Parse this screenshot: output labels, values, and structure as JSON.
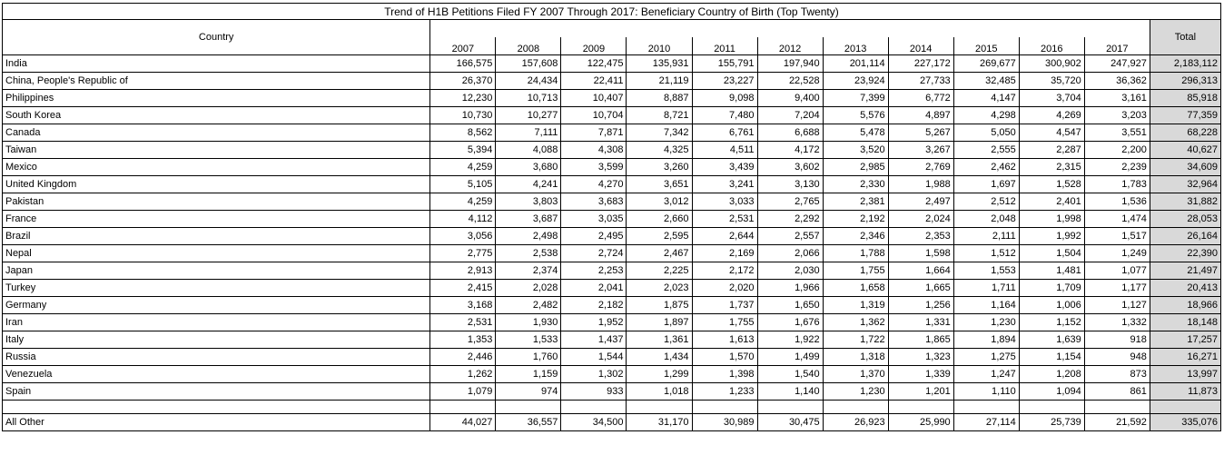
{
  "title": "Trend of H1B Petitions Filed FY 2007 Through 2017: Beneficiary Country of Birth (Top Twenty)",
  "table": {
    "header": {
      "country": "Country",
      "years": [
        "2007",
        "2008",
        "2009",
        "2010",
        "2011",
        "2012",
        "2013",
        "2014",
        "2015",
        "2016",
        "2017"
      ],
      "total": "Total"
    },
    "rows": [
      [
        "India",
        "166,575",
        "157,608",
        "122,475",
        "135,931",
        "155,791",
        "197,940",
        "201,114",
        "227,172",
        "269,677",
        "300,902",
        "247,927",
        "2,183,112"
      ],
      [
        "China, People's Republic of",
        "26,370",
        "24,434",
        "22,411",
        "21,119",
        "23,227",
        "22,528",
        "23,924",
        "27,733",
        "32,485",
        "35,720",
        "36,362",
        "296,313"
      ],
      [
        "Philippines",
        "12,230",
        "10,713",
        "10,407",
        "8,887",
        "9,098",
        "9,400",
        "7,399",
        "6,772",
        "4,147",
        "3,704",
        "3,161",
        "85,918"
      ],
      [
        "South Korea",
        "10,730",
        "10,277",
        "10,704",
        "8,721",
        "7,480",
        "7,204",
        "5,576",
        "4,897",
        "4,298",
        "4,269",
        "3,203",
        "77,359"
      ],
      [
        "Canada",
        "8,562",
        "7,111",
        "7,871",
        "7,342",
        "6,761",
        "6,688",
        "5,478",
        "5,267",
        "5,050",
        "4,547",
        "3,551",
        "68,228"
      ],
      [
        "Taiwan",
        "5,394",
        "4,088",
        "4,308",
        "4,325",
        "4,511",
        "4,172",
        "3,520",
        "3,267",
        "2,555",
        "2,287",
        "2,200",
        "40,627"
      ],
      [
        "Mexico",
        "4,259",
        "3,680",
        "3,599",
        "3,260",
        "3,439",
        "3,602",
        "2,985",
        "2,769",
        "2,462",
        "2,315",
        "2,239",
        "34,609"
      ],
      [
        "United Kingdom",
        "5,105",
        "4,241",
        "4,270",
        "3,651",
        "3,241",
        "3,130",
        "2,330",
        "1,988",
        "1,697",
        "1,528",
        "1,783",
        "32,964"
      ],
      [
        "Pakistan",
        "4,259",
        "3,803",
        "3,683",
        "3,012",
        "3,033",
        "2,765",
        "2,381",
        "2,497",
        "2,512",
        "2,401",
        "1,536",
        "31,882"
      ],
      [
        "France",
        "4,112",
        "3,687",
        "3,035",
        "2,660",
        "2,531",
        "2,292",
        "2,192",
        "2,024",
        "2,048",
        "1,998",
        "1,474",
        "28,053"
      ],
      [
        "Brazil",
        "3,056",
        "2,498",
        "2,495",
        "2,595",
        "2,644",
        "2,557",
        "2,346",
        "2,353",
        "2,111",
        "1,992",
        "1,517",
        "26,164"
      ],
      [
        "Nepal",
        "2,775",
        "2,538",
        "2,724",
        "2,467",
        "2,169",
        "2,066",
        "1,788",
        "1,598",
        "1,512",
        "1,504",
        "1,249",
        "22,390"
      ],
      [
        "Japan",
        "2,913",
        "2,374",
        "2,253",
        "2,225",
        "2,172",
        "2,030",
        "1,755",
        "1,664",
        "1,553",
        "1,481",
        "1,077",
        "21,497"
      ],
      [
        "Turkey",
        "2,415",
        "2,028",
        "2,041",
        "2,023",
        "2,020",
        "1,966",
        "1,658",
        "1,665",
        "1,711",
        "1,709",
        "1,177",
        "20,413"
      ],
      [
        "Germany",
        "3,168",
        "2,482",
        "2,182",
        "1,875",
        "1,737",
        "1,650",
        "1,319",
        "1,256",
        "1,164",
        "1,006",
        "1,127",
        "18,966"
      ],
      [
        "Iran",
        "2,531",
        "1,930",
        "1,952",
        "1,897",
        "1,755",
        "1,676",
        "1,362",
        "1,331",
        "1,230",
        "1,152",
        "1,332",
        "18,148"
      ],
      [
        "Italy",
        "1,353",
        "1,533",
        "1,437",
        "1,361",
        "1,613",
        "1,922",
        "1,722",
        "1,865",
        "1,894",
        "1,639",
        "918",
        "17,257"
      ],
      [
        "Russia",
        "2,446",
        "1,760",
        "1,544",
        "1,434",
        "1,570",
        "1,499",
        "1,318",
        "1,323",
        "1,275",
        "1,154",
        "948",
        "16,271"
      ],
      [
        "Venezuela",
        "1,262",
        "1,159",
        "1,302",
        "1,299",
        "1,398",
        "1,540",
        "1,370",
        "1,339",
        "1,247",
        "1,208",
        "873",
        "13,997"
      ],
      [
        "Spain",
        "1,079",
        "974",
        "933",
        "1,018",
        "1,233",
        "1,140",
        "1,230",
        "1,201",
        "1,110",
        "1,094",
        "861",
        "11,873"
      ]
    ],
    "other": [
      "All Other",
      "44,027",
      "36,557",
      "34,500",
      "31,170",
      "30,989",
      "30,475",
      "26,923",
      "25,990",
      "27,114",
      "25,739",
      "21,592",
      "335,076"
    ]
  }
}
